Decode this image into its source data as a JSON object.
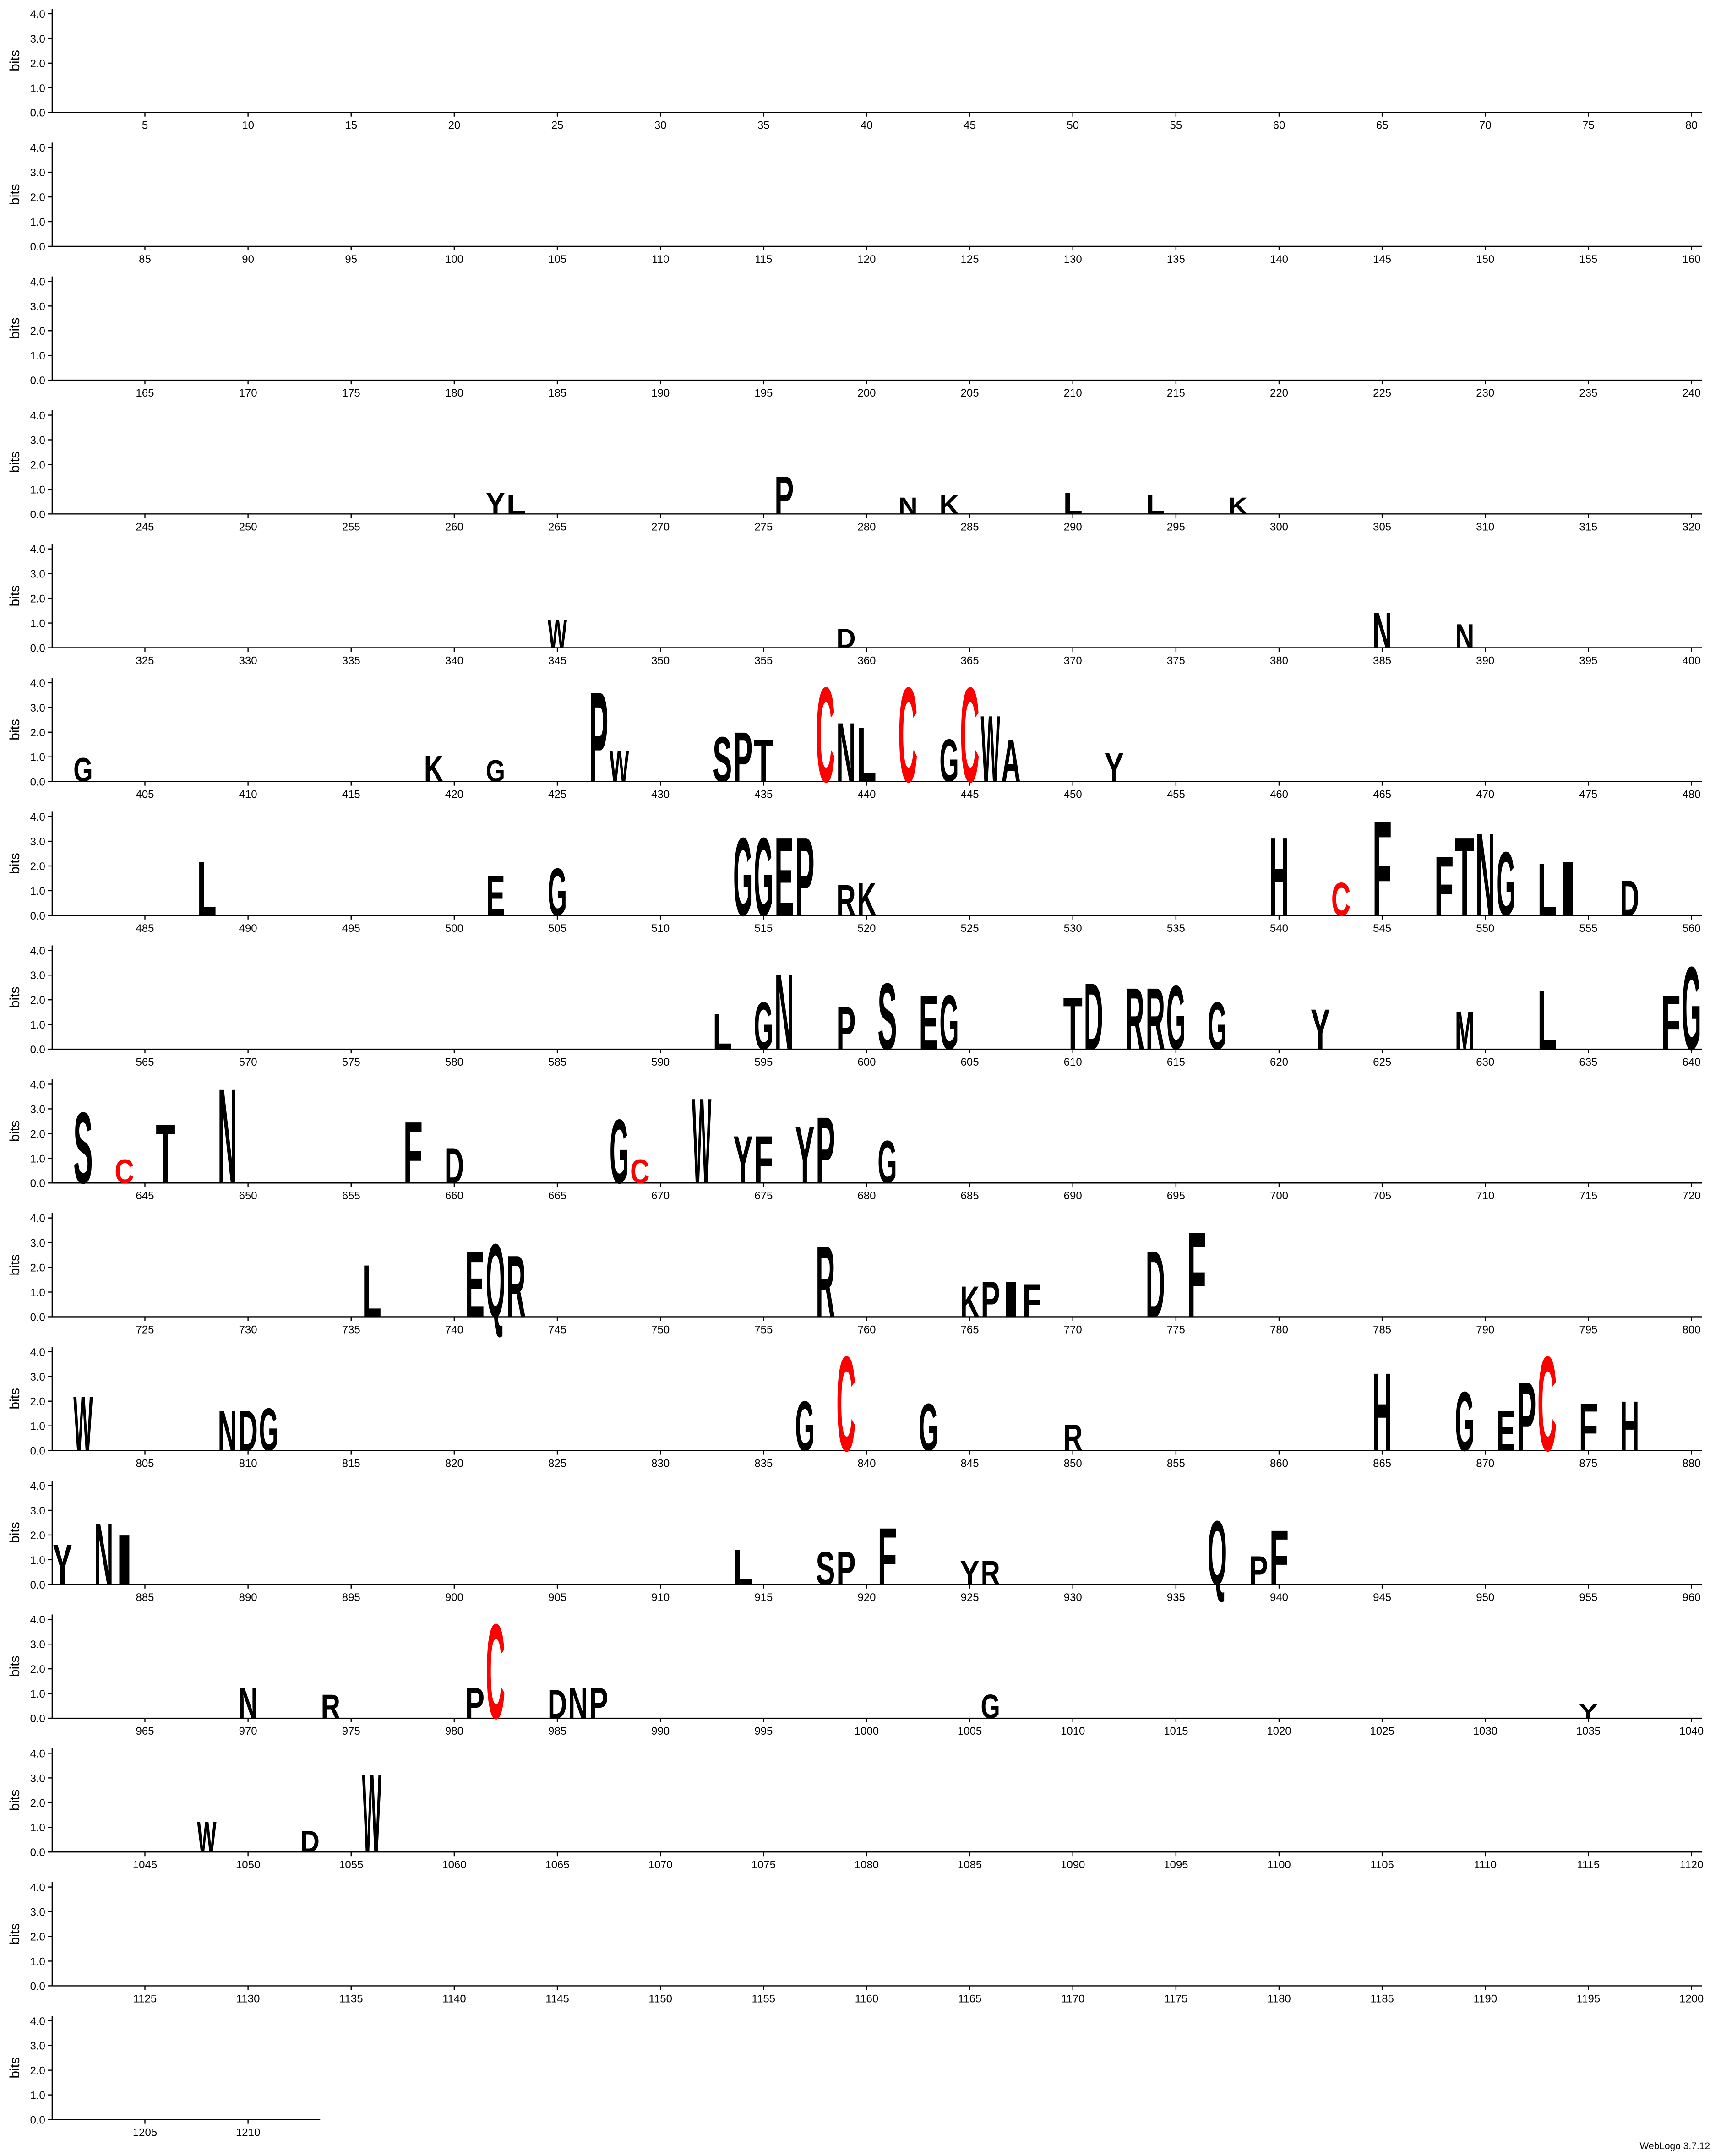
{
  "chart_data": {
    "type": "sequence-logo",
    "ylabel": "bits",
    "xlim": [
      0.5,
      1213.5
    ],
    "ylim": [
      0,
      4.2
    ],
    "yticks": [
      {
        "value": 0,
        "label": "0.0"
      },
      {
        "value": 1,
        "label": "1.0"
      },
      {
        "value": 2,
        "label": "2.0"
      },
      {
        "value": 3,
        "label": "3.0"
      },
      {
        "value": 4,
        "label": "4.0"
      }
    ],
    "xticks": [
      5,
      10,
      15,
      20,
      25,
      30,
      35,
      40,
      45,
      50,
      55,
      60,
      65,
      70,
      75,
      80,
      85,
      90,
      95,
      100,
      105,
      110,
      115,
      120,
      125,
      130,
      135,
      140,
      145,
      150,
      155,
      160,
      165,
      170,
      175,
      180,
      185,
      190,
      195,
      200,
      205,
      210,
      215,
      220,
      225,
      230,
      235,
      240,
      245,
      250,
      255,
      260,
      265,
      270,
      275,
      280,
      285,
      290,
      295,
      300,
      305,
      310,
      315,
      320,
      325,
      330,
      335,
      340,
      345,
      350,
      355,
      360,
      365,
      370,
      375,
      380,
      385,
      390,
      395,
      400,
      405,
      410,
      415,
      420,
      425,
      430,
      435,
      440,
      445,
      450,
      455,
      460,
      465,
      470,
      475,
      480,
      485,
      490,
      495,
      500,
      505,
      510,
      515,
      520,
      525,
      530,
      535,
      540,
      545,
      550,
      555,
      560,
      565,
      570,
      575,
      580,
      585,
      590,
      595,
      600,
      605,
      610,
      615,
      620,
      625,
      630,
      635,
      640,
      645,
      650,
      655,
      660,
      665,
      670,
      675,
      680,
      685,
      690,
      695,
      700,
      705,
      710,
      715,
      720,
      725,
      730,
      735,
      740,
      745,
      750,
      755,
      760,
      765,
      770,
      775,
      780,
      785,
      790,
      795,
      800,
      805,
      810,
      815,
      820,
      825,
      830,
      835,
      840,
      845,
      850,
      855,
      860,
      865,
      870,
      875,
      880,
      885,
      890,
      895,
      900,
      905,
      910,
      915,
      920,
      925,
      930,
      935,
      940,
      945,
      950,
      955,
      960,
      965,
      970,
      975,
      980,
      985,
      990,
      995,
      1000,
      1005,
      1010,
      1015,
      1020,
      1025,
      1030,
      1035,
      1040,
      1045,
      1050,
      1055,
      1060,
      1065,
      1070,
      1075,
      1080,
      1085,
      1090,
      1095,
      1100,
      1105,
      1110,
      1115,
      1120,
      1125,
      1130,
      1135,
      1140,
      1145,
      1150,
      1155,
      1160,
      1165,
      1170,
      1175,
      1180,
      1185,
      1190,
      1195,
      1200,
      1205,
      1210
    ],
    "default_color": "#000000",
    "letter_colors": {
      "C": "#ff0000"
    },
    "letters": [
      {
        "position": 262,
        "letter": "Y",
        "bits": 0.9
      },
      {
        "position": 263,
        "letter": "L",
        "bits": 0.8
      },
      {
        "position": 276,
        "letter": "P",
        "bits": 1.6
      },
      {
        "position": 282,
        "letter": "N",
        "bits": 0.7
      },
      {
        "position": 284,
        "letter": "K",
        "bits": 0.8
      },
      {
        "position": 290,
        "letter": "L",
        "bits": 0.9
      },
      {
        "position": 294,
        "letter": "L",
        "bits": 0.8
      },
      {
        "position": 298,
        "letter": "K",
        "bits": 0.7
      },
      {
        "position": 345,
        "letter": "W",
        "bits": 1.2
      },
      {
        "position": 359,
        "letter": "D",
        "bits": 0.8
      },
      {
        "position": 385,
        "letter": "N",
        "bits": 1.5
      },
      {
        "position": 389,
        "letter": "N",
        "bits": 1.0
      },
      {
        "position": 402,
        "letter": "G",
        "bits": 1.0
      },
      {
        "position": 419,
        "letter": "K",
        "bits": 1.1
      },
      {
        "position": 422,
        "letter": "G",
        "bits": 0.9
      },
      {
        "position": 427,
        "letter": "P",
        "bits": 3.8
      },
      {
        "position": 428,
        "letter": "W",
        "bits": 1.3
      },
      {
        "position": 433,
        "letter": "S",
        "bits": 1.9
      },
      {
        "position": 434,
        "letter": "P",
        "bits": 2.1
      },
      {
        "position": 435,
        "letter": "T",
        "bits": 1.8
      },
      {
        "position": 438,
        "letter": "C",
        "bits": 4.0
      },
      {
        "position": 439,
        "letter": "N",
        "bits": 2.5
      },
      {
        "position": 440,
        "letter": "L",
        "bits": 2.3
      },
      {
        "position": 442,
        "letter": "C",
        "bits": 4.0
      },
      {
        "position": 444,
        "letter": "G",
        "bits": 1.8
      },
      {
        "position": 445,
        "letter": "C",
        "bits": 4.0
      },
      {
        "position": 446,
        "letter": "W",
        "bits": 2.8
      },
      {
        "position": 447,
        "letter": "A",
        "bits": 1.8
      },
      {
        "position": 452,
        "letter": "Y",
        "bits": 1.2
      },
      {
        "position": 488,
        "letter": "L",
        "bits": 2.3
      },
      {
        "position": 502,
        "letter": "E",
        "bits": 1.7
      },
      {
        "position": 505,
        "letter": "G",
        "bits": 2.0
      },
      {
        "position": 514,
        "letter": "G",
        "bits": 3.3
      },
      {
        "position": 515,
        "letter": "G",
        "bits": 3.3
      },
      {
        "position": 516,
        "letter": "E",
        "bits": 3.3
      },
      {
        "position": 517,
        "letter": "P",
        "bits": 3.3
      },
      {
        "position": 519,
        "letter": "R",
        "bits": 1.3
      },
      {
        "position": 520,
        "letter": "K",
        "bits": 1.4
      },
      {
        "position": 540,
        "letter": "H",
        "bits": 3.3
      },
      {
        "position": 543,
        "letter": "C",
        "bits": 1.4
      },
      {
        "position": 545,
        "letter": "F",
        "bits": 4.0
      },
      {
        "position": 548,
        "letter": "F",
        "bits": 2.5
      },
      {
        "position": 549,
        "letter": "T",
        "bits": 3.3
      },
      {
        "position": 550,
        "letter": "N",
        "bits": 3.5
      },
      {
        "position": 551,
        "letter": "G",
        "bits": 2.7
      },
      {
        "position": 553,
        "letter": "L",
        "bits": 2.2
      },
      {
        "position": 554,
        "letter": "I",
        "bits": 2.3
      },
      {
        "position": 557,
        "letter": "D",
        "bits": 1.5
      },
      {
        "position": 593,
        "letter": "L",
        "bits": 1.5
      },
      {
        "position": 595,
        "letter": "G",
        "bits": 2.0
      },
      {
        "position": 596,
        "letter": "N",
        "bits": 3.2
      },
      {
        "position": 599,
        "letter": "P",
        "bits": 1.8
      },
      {
        "position": 601,
        "letter": "S",
        "bits": 2.8
      },
      {
        "position": 603,
        "letter": "E",
        "bits": 2.3
      },
      {
        "position": 604,
        "letter": "G",
        "bits": 2.3
      },
      {
        "position": 610,
        "letter": "T",
        "bits": 2.2
      },
      {
        "position": 611,
        "letter": "D",
        "bits": 2.8
      },
      {
        "position": 613,
        "letter": "R",
        "bits": 2.6
      },
      {
        "position": 614,
        "letter": "R",
        "bits": 2.6
      },
      {
        "position": 615,
        "letter": "G",
        "bits": 2.7
      },
      {
        "position": 617,
        "letter": "G",
        "bits": 2.0
      },
      {
        "position": 622,
        "letter": "Y",
        "bits": 1.7
      },
      {
        "position": 629,
        "letter": "M",
        "bits": 1.6
      },
      {
        "position": 633,
        "letter": "L",
        "bits": 2.5
      },
      {
        "position": 639,
        "letter": "F",
        "bits": 2.3
      },
      {
        "position": 640,
        "letter": "G",
        "bits": 3.5
      },
      {
        "position": 642,
        "letter": "S",
        "bits": 3.0
      },
      {
        "position": 644,
        "letter": "C",
        "bits": 1.0
      },
      {
        "position": 646,
        "letter": "T",
        "bits": 2.5
      },
      {
        "position": 649,
        "letter": "N",
        "bits": 4.0
      },
      {
        "position": 658,
        "letter": "F",
        "bits": 2.6
      },
      {
        "position": 660,
        "letter": "D",
        "bits": 1.5
      },
      {
        "position": 668,
        "letter": "G",
        "bits": 2.7
      },
      {
        "position": 669,
        "letter": "C",
        "bits": 1.0
      },
      {
        "position": 672,
        "letter": "W",
        "bits": 3.6
      },
      {
        "position": 674,
        "letter": "Y",
        "bits": 2.0
      },
      {
        "position": 675,
        "letter": "F",
        "bits": 2.0
      },
      {
        "position": 677,
        "letter": "Y",
        "bits": 2.4
      },
      {
        "position": 678,
        "letter": "P",
        "bits": 2.8
      },
      {
        "position": 681,
        "letter": "G",
        "bits": 1.8
      },
      {
        "position": 736,
        "letter": "L",
        "bits": 2.2
      },
      {
        "position": 741,
        "letter": "E",
        "bits": 2.8
      },
      {
        "position": 742,
        "letter": "Q",
        "bits": 3.1
      },
      {
        "position": 743,
        "letter": "R",
        "bits": 2.6
      },
      {
        "position": 758,
        "letter": "R",
        "bits": 3.0
      },
      {
        "position": 765,
        "letter": "K",
        "bits": 1.3
      },
      {
        "position": 766,
        "letter": "P",
        "bits": 1.5
      },
      {
        "position": 767,
        "letter": "I",
        "bits": 1.5
      },
      {
        "position": 768,
        "letter": "F",
        "bits": 1.4
      },
      {
        "position": 774,
        "letter": "D",
        "bits": 2.8
      },
      {
        "position": 776,
        "letter": "F",
        "bits": 3.6
      },
      {
        "position": 802,
        "letter": "W",
        "bits": 2.3
      },
      {
        "position": 809,
        "letter": "N",
        "bits": 1.7
      },
      {
        "position": 810,
        "letter": "D",
        "bits": 1.7
      },
      {
        "position": 811,
        "letter": "G",
        "bits": 1.8
      },
      {
        "position": 837,
        "letter": "G",
        "bits": 2.1
      },
      {
        "position": 839,
        "letter": "C",
        "bits": 4.0
      },
      {
        "position": 843,
        "letter": "G",
        "bits": 2.0
      },
      {
        "position": 850,
        "letter": "R",
        "bits": 1.1
      },
      {
        "position": 865,
        "letter": "H",
        "bits": 3.3
      },
      {
        "position": 869,
        "letter": "G",
        "bits": 2.5
      },
      {
        "position": 871,
        "letter": "E",
        "bits": 1.7
      },
      {
        "position": 872,
        "letter": "P",
        "bits": 2.9
      },
      {
        "position": 873,
        "letter": "C",
        "bits": 4.0
      },
      {
        "position": 875,
        "letter": "F",
        "bits": 2.0
      },
      {
        "position": 877,
        "letter": "H",
        "bits": 2.1
      },
      {
        "position": 881,
        "letter": "Y",
        "bits": 1.7
      },
      {
        "position": 883,
        "letter": "N",
        "bits": 2.6
      },
      {
        "position": 884,
        "letter": "I",
        "bits": 2.1
      },
      {
        "position": 914,
        "letter": "L",
        "bits": 1.5
      },
      {
        "position": 918,
        "letter": "S",
        "bits": 1.4
      },
      {
        "position": 919,
        "letter": "P",
        "bits": 1.4
      },
      {
        "position": 921,
        "letter": "F",
        "bits": 2.4
      },
      {
        "position": 925,
        "letter": "Y",
        "bits": 1.0
      },
      {
        "position": 926,
        "letter": "R",
        "bits": 1.0
      },
      {
        "position": 937,
        "letter": "Q",
        "bits": 2.7
      },
      {
        "position": 939,
        "letter": "P",
        "bits": 1.2
      },
      {
        "position": 940,
        "letter": "F",
        "bits": 2.3
      },
      {
        "position": 970,
        "letter": "N",
        "bits": 1.3
      },
      {
        "position": 974,
        "letter": "R",
        "bits": 1.0
      },
      {
        "position": 981,
        "letter": "P",
        "bits": 1.3
      },
      {
        "position": 982,
        "letter": "C",
        "bits": 4.0
      },
      {
        "position": 985,
        "letter": "D",
        "bits": 1.2
      },
      {
        "position": 986,
        "letter": "N",
        "bits": 1.3
      },
      {
        "position": 987,
        "letter": "P",
        "bits": 1.3
      },
      {
        "position": 1006,
        "letter": "G",
        "bits": 1.0
      },
      {
        "position": 1035,
        "letter": "Y",
        "bits": 0.6
      },
      {
        "position": 1048,
        "letter": "W",
        "bits": 1.3
      },
      {
        "position": 1053,
        "letter": "D",
        "bits": 0.9
      },
      {
        "position": 1056,
        "letter": "W",
        "bits": 3.3
      }
    ],
    "credit": "WebLogo 3.7.12"
  }
}
